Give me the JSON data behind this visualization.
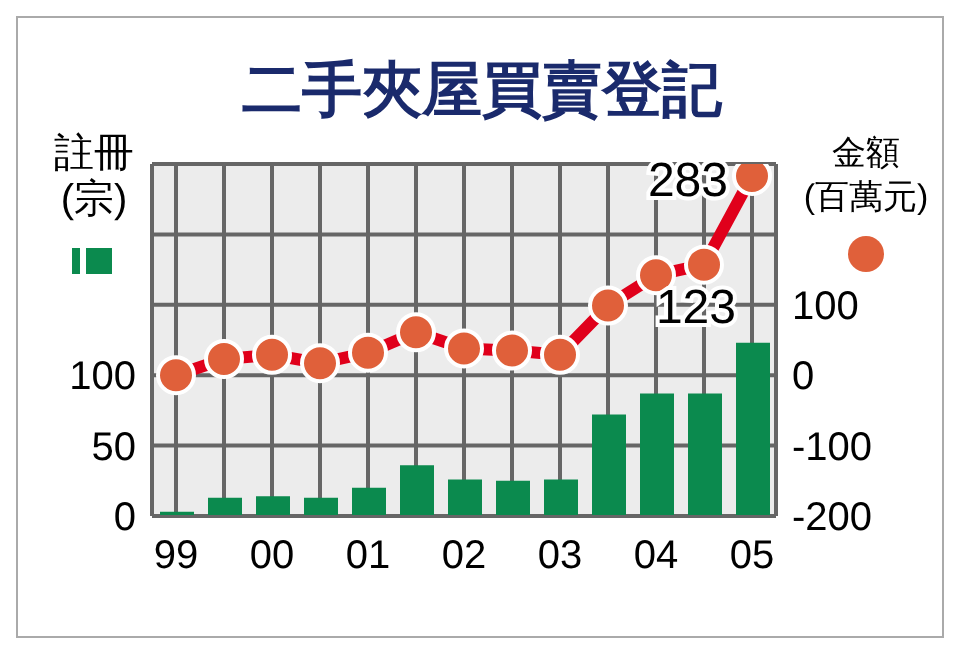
{
  "chart_data": {
    "type": "bar",
    "title": "二手夾屋買賣登記",
    "ylabel": "註冊(宗)",
    "y2label": "金額(百萬元)",
    "categories": [
      "99",
      null,
      "00",
      null,
      "01",
      null,
      "02",
      null,
      "03",
      null,
      "04",
      null,
      "05"
    ],
    "ylim": [
      0,
      250
    ],
    "yticks": [
      0,
      50,
      100,
      {
        "value": 150,
        "label": null
      },
      {
        "value": 200,
        "label": null
      },
      {
        "value": 250,
        "label": null
      }
    ],
    "y2lim": [
      -200,
      300
    ],
    "y2ticks": [
      -200,
      -100,
      0,
      100
    ],
    "grid": true,
    "legend": false,
    "series": [
      {
        "color": "#0b8a4e",
        "values": [
          3,
          13,
          14,
          13,
          20,
          36,
          26,
          25,
          26,
          72,
          87,
          87,
          123
        ],
        "value_labels": [
          null,
          null,
          null,
          null,
          null,
          null,
          null,
          null,
          null,
          null,
          null,
          null,
          "123"
        ]
      },
      {
        "type": "line",
        "axis": "y2",
        "color": "#e0001b",
        "marker": "circle",
        "values": [
          0,
          23,
          29,
          17,
          32,
          61,
          38,
          35,
          29,
          99,
          142,
          157,
          283
        ],
        "value_labels": [
          null,
          null,
          null,
          null,
          null,
          null,
          null,
          null,
          null,
          null,
          null,
          null,
          "283"
        ]
      }
    ]
  }
}
